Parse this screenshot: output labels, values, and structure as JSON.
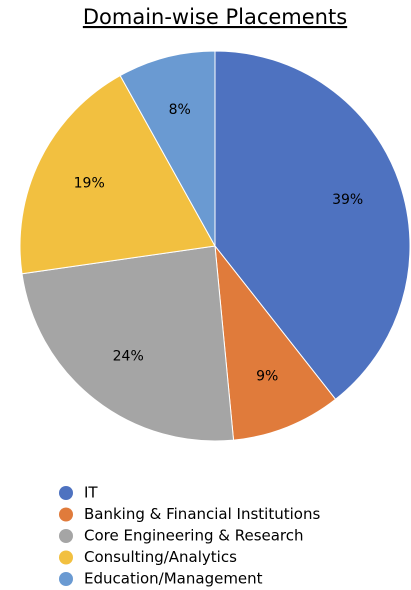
{
  "chart_data": {
    "type": "pie",
    "title": "Domain-wise Placements",
    "categories": [
      "IT",
      "Banking & Financial Institutions",
      "Core Engineering & Research",
      "Consulting/Analytics",
      "Education/Management"
    ],
    "values": [
      39,
      9,
      24,
      19,
      8
    ],
    "value_labels": [
      "39%",
      "9%",
      "24%",
      "19%",
      "8%"
    ],
    "colors": [
      "#4e72c0",
      "#e07b3b",
      "#a5a5a5",
      "#f2c040",
      "#6a9ad2"
    ]
  }
}
